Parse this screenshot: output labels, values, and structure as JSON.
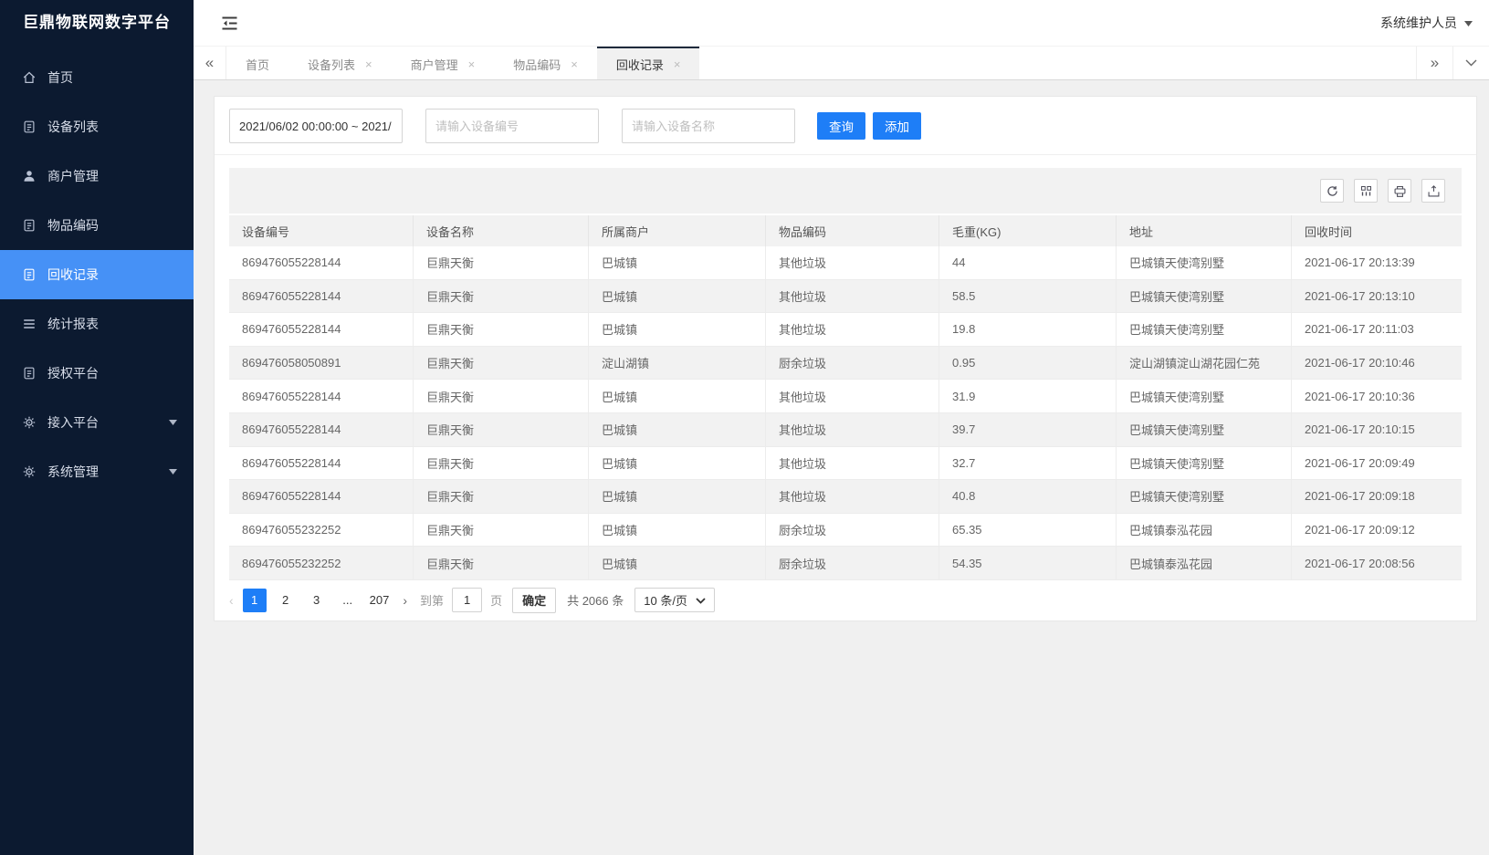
{
  "app": {
    "title": "巨鼎物联网数字平台",
    "user": "系统维护人员"
  },
  "sidebar": {
    "items": [
      {
        "label": "首页",
        "icon": "home-icon"
      },
      {
        "label": "设备列表",
        "icon": "document-icon"
      },
      {
        "label": "商户管理",
        "icon": "user-icon"
      },
      {
        "label": "物品编码",
        "icon": "document-icon"
      },
      {
        "label": "回收记录",
        "icon": "document-icon",
        "active": true
      },
      {
        "label": "统计报表",
        "icon": "list-icon"
      },
      {
        "label": "授权平台",
        "icon": "document-icon"
      },
      {
        "label": "接入平台",
        "icon": "gear-icon",
        "caret": true
      },
      {
        "label": "系统管理",
        "icon": "gear-icon",
        "caret": true
      }
    ]
  },
  "tabbar": {
    "left_arrow": "«",
    "right_arrow": "»",
    "tabs": [
      {
        "label": "首页",
        "closable": false
      },
      {
        "label": "设备列表",
        "closable": true
      },
      {
        "label": "商户管理",
        "closable": true
      },
      {
        "label": "物品编码",
        "closable": true
      },
      {
        "label": "回收记录",
        "closable": true,
        "active": true
      }
    ],
    "close_glyph": "×"
  },
  "filters": {
    "date_range": "2021/06/02 00:00:00 ~ 2021/",
    "device_no_placeholder": "请输入设备编号",
    "device_name_placeholder": "请输入设备名称",
    "search_label": "查询",
    "add_label": "添加"
  },
  "table": {
    "toolbar": [
      {
        "icon": "refresh-icon"
      },
      {
        "icon": "columns-icon"
      },
      {
        "icon": "print-icon"
      },
      {
        "icon": "export-icon"
      }
    ],
    "columns": [
      "设备编号",
      "设备名称",
      "所属商户",
      "物品编码",
      "毛重(KG)",
      "地址",
      "回收时间"
    ],
    "rows": [
      [
        "869476055228144",
        "巨鼎天衡",
        "巴城镇",
        "其他垃圾",
        "44",
        "巴城镇天使湾别墅",
        "2021-06-17 20:13:39"
      ],
      [
        "869476055228144",
        "巨鼎天衡",
        "巴城镇",
        "其他垃圾",
        "58.5",
        "巴城镇天使湾别墅",
        "2021-06-17 20:13:10"
      ],
      [
        "869476055228144",
        "巨鼎天衡",
        "巴城镇",
        "其他垃圾",
        "19.8",
        "巴城镇天使湾别墅",
        "2021-06-17 20:11:03"
      ],
      [
        "869476058050891",
        "巨鼎天衡",
        "淀山湖镇",
        "厨余垃圾",
        "0.95",
        "淀山湖镇淀山湖花园仁苑",
        "2021-06-17 20:10:46"
      ],
      [
        "869476055228144",
        "巨鼎天衡",
        "巴城镇",
        "其他垃圾",
        "31.9",
        "巴城镇天使湾别墅",
        "2021-06-17 20:10:36"
      ],
      [
        "869476055228144",
        "巨鼎天衡",
        "巴城镇",
        "其他垃圾",
        "39.7",
        "巴城镇天使湾别墅",
        "2021-06-17 20:10:15"
      ],
      [
        "869476055228144",
        "巨鼎天衡",
        "巴城镇",
        "其他垃圾",
        "32.7",
        "巴城镇天使湾别墅",
        "2021-06-17 20:09:49"
      ],
      [
        "869476055228144",
        "巨鼎天衡",
        "巴城镇",
        "其他垃圾",
        "40.8",
        "巴城镇天使湾别墅",
        "2021-06-17 20:09:18"
      ],
      [
        "869476055232252",
        "巨鼎天衡",
        "巴城镇",
        "厨余垃圾",
        "65.35",
        "巴城镇泰泓花园",
        "2021-06-17 20:09:12"
      ],
      [
        "869476055232252",
        "巨鼎天衡",
        "巴城镇",
        "厨余垃圾",
        "54.35",
        "巴城镇泰泓花园",
        "2021-06-17 20:08:56"
      ]
    ]
  },
  "pagination": {
    "prev": "‹",
    "next": "›",
    "pages": [
      {
        "label": "1",
        "active": true
      },
      {
        "label": "2"
      },
      {
        "label": "3"
      },
      {
        "label": "...",
        "ellipsis": true
      },
      {
        "label": "207"
      }
    ],
    "goto_label": "到第",
    "page_value": "1",
    "page_unit": "页",
    "confirm_label": "确定",
    "total_label": "共 2066 条",
    "page_size": "10 条/页"
  },
  "colors": {
    "accent": "#1e7ef7",
    "sidebar_bg": "#0c1a30",
    "active_menu": "#4691f6"
  }
}
